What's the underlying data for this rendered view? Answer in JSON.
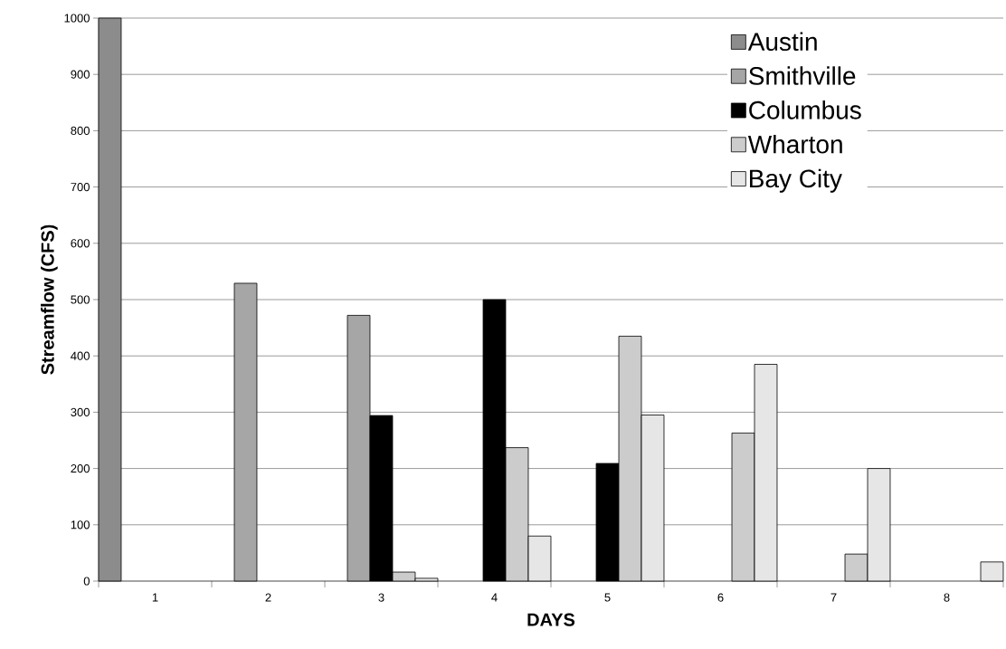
{
  "chart_data": {
    "type": "bar",
    "xlabel": "DAYS",
    "ylabel": "Streamflow (CFS)",
    "categories": [
      "1",
      "2",
      "3",
      "4",
      "5",
      "6",
      "7",
      "8"
    ],
    "series": [
      {
        "name": "Austin",
        "color": "#8c8c8c",
        "values": [
          1000,
          null,
          null,
          null,
          null,
          null,
          null,
          null
        ]
      },
      {
        "name": "Smithville",
        "color": "#a6a6a6",
        "values": [
          null,
          529,
          472,
          null,
          null,
          null,
          null,
          null
        ]
      },
      {
        "name": "Columbus",
        "color": "#000000",
        "values": [
          null,
          null,
          294,
          500,
          209,
          null,
          null,
          null
        ]
      },
      {
        "name": "Wharton",
        "color": "#cccccc",
        "values": [
          null,
          null,
          16,
          237,
          435,
          263,
          48,
          null
        ]
      },
      {
        "name": "Bay City",
        "color": "#e6e6e6",
        "values": [
          null,
          null,
          5,
          80,
          295,
          385,
          200,
          34
        ]
      }
    ],
    "ylim": [
      0,
      1000
    ],
    "yticks": [
      0,
      100,
      200,
      300,
      400,
      500,
      600,
      700,
      800,
      900,
      1000
    ],
    "grid": "y",
    "legend": "top right"
  }
}
